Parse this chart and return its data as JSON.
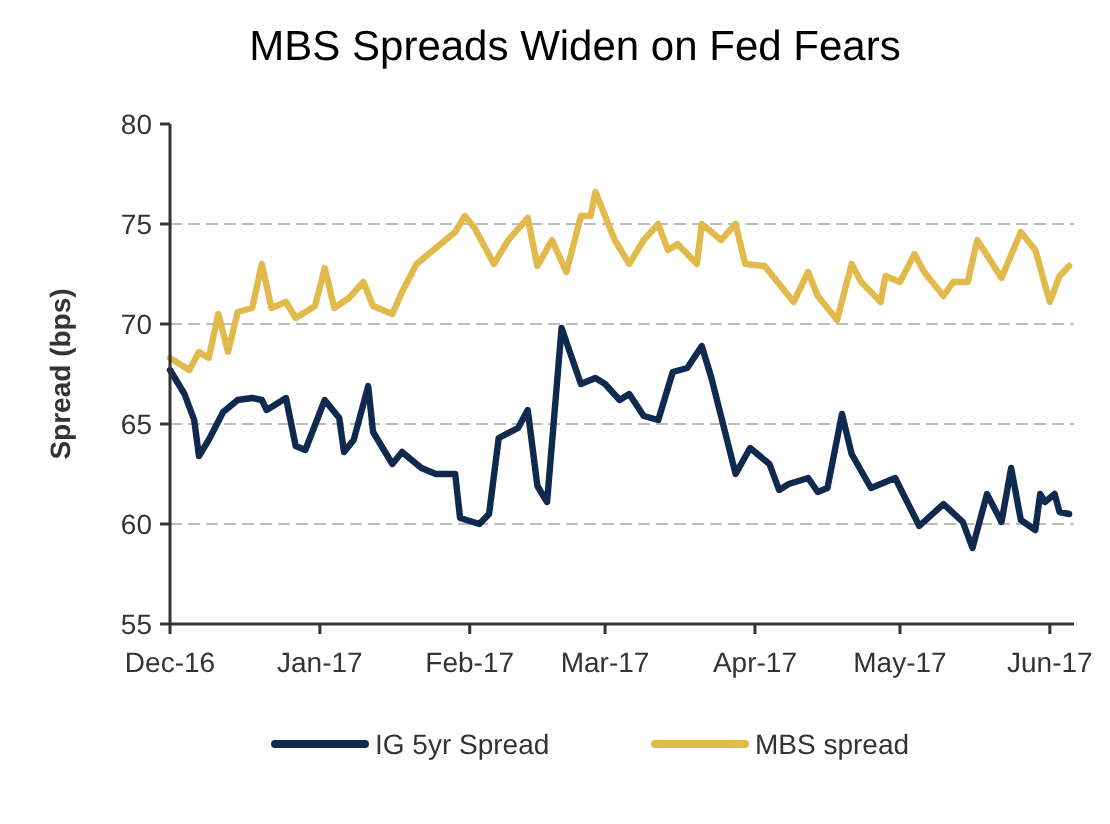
{
  "chart_data": {
    "type": "line",
    "title": "MBS Spreads Widen on Fed Fears",
    "ylabel": "Spread (bps)",
    "xlim": [
      "2016-12-01",
      "2017-06-06"
    ],
    "xticks": [
      {
        "value": "2016-12-01",
        "label": "Dec-16"
      },
      {
        "value": "2017-01-01",
        "label": "Jan-17"
      },
      {
        "value": "2017-02-01",
        "label": "Feb-17"
      },
      {
        "value": "2017-03-01",
        "label": "Mar-17"
      },
      {
        "value": "2017-04-01",
        "label": "Apr-17"
      },
      {
        "value": "2017-05-01",
        "label": "May-17"
      },
      {
        "value": "2017-06-01",
        "label": "Jun-17"
      }
    ],
    "ylim": [
      55,
      80
    ],
    "yticks": [
      55,
      60,
      65,
      70,
      75,
      80
    ],
    "grid": "y",
    "legend": "bottom",
    "line_style": "solid",
    "series": [
      {
        "name": "IG 5yr Spread",
        "color": "#10294f",
        "x": [
          "2016-12-01",
          "2016-12-04",
          "2016-12-06",
          "2016-12-07",
          "2016-12-09",
          "2016-12-12",
          "2016-12-15",
          "2016-12-18",
          "2016-12-20",
          "2016-12-21",
          "2016-12-25",
          "2016-12-27",
          "2016-12-29",
          "2017-01-02",
          "2017-01-05",
          "2017-01-06",
          "2017-01-08",
          "2017-01-11",
          "2017-01-12",
          "2017-01-16",
          "2017-01-18",
          "2017-01-22",
          "2017-01-25",
          "2017-01-29",
          "2017-01-30",
          "2017-02-03",
          "2017-02-05",
          "2017-02-07",
          "2017-02-11",
          "2017-02-13",
          "2017-02-15",
          "2017-02-17",
          "2017-02-20",
          "2017-02-24",
          "2017-02-27",
          "2017-03-01",
          "2017-03-04",
          "2017-03-06",
          "2017-03-09",
          "2017-03-12",
          "2017-03-15",
          "2017-03-18",
          "2017-03-21",
          "2017-03-23",
          "2017-03-28",
          "2017-03-31",
          "2017-04-04",
          "2017-04-06",
          "2017-04-08",
          "2017-04-12",
          "2017-04-14",
          "2017-04-16",
          "2017-04-19",
          "2017-04-21",
          "2017-04-25",
          "2017-04-30",
          "2017-05-05",
          "2017-05-10",
          "2017-05-14",
          "2017-05-16",
          "2017-05-19",
          "2017-05-22",
          "2017-05-24",
          "2017-05-26",
          "2017-05-29",
          "2017-05-30",
          "2017-05-31",
          "2017-06-02",
          "2017-06-03",
          "2017-06-05"
        ],
        "values": [
          67.7,
          66.5,
          65.2,
          63.4,
          64.2,
          65.6,
          66.2,
          66.3,
          66.2,
          65.7,
          66.3,
          63.9,
          63.7,
          66.2,
          65.3,
          63.6,
          64.2,
          66.9,
          64.6,
          63.0,
          63.6,
          62.8,
          62.5,
          62.5,
          60.3,
          60.0,
          60.5,
          64.3,
          64.8,
          65.7,
          61.9,
          61.1,
          69.8,
          67.0,
          67.3,
          67.0,
          66.2,
          66.5,
          65.4,
          65.2,
          67.6,
          67.8,
          68.9,
          67.3,
          62.5,
          63.8,
          63.0,
          61.7,
          62.0,
          62.3,
          61.6,
          61.8,
          65.5,
          63.5,
          61.8,
          62.3,
          59.9,
          61.0,
          60.1,
          58.8,
          61.5,
          60.1,
          62.8,
          60.2,
          59.7,
          61.5,
          61.1,
          61.5,
          60.6,
          60.5
        ]
      },
      {
        "name": "MBS spread",
        "color": "#e2b94b",
        "x": [
          "2016-12-01",
          "2016-12-05",
          "2016-12-07",
          "2016-12-09",
          "2016-12-11",
          "2016-12-13",
          "2016-12-15",
          "2016-12-18",
          "2016-12-20",
          "2016-12-22",
          "2016-12-25",
          "2016-12-27",
          "2016-12-31",
          "2017-01-02",
          "2017-01-04",
          "2017-01-07",
          "2017-01-10",
          "2017-01-12",
          "2017-01-16",
          "2017-01-18",
          "2017-01-21",
          "2017-01-25",
          "2017-01-29",
          "2017-01-31",
          "2017-02-02",
          "2017-02-06",
          "2017-02-09",
          "2017-02-13",
          "2017-02-15",
          "2017-02-18",
          "2017-02-21",
          "2017-02-24",
          "2017-02-26",
          "2017-02-27",
          "2017-03-03",
          "2017-03-04",
          "2017-03-06",
          "2017-03-09",
          "2017-03-12",
          "2017-03-14",
          "2017-03-16",
          "2017-03-20",
          "2017-03-21",
          "2017-03-25",
          "2017-03-28",
          "2017-03-30",
          "2017-04-03",
          "2017-04-06",
          "2017-04-09",
          "2017-04-12",
          "2017-04-14",
          "2017-04-18",
          "2017-04-21",
          "2017-04-23",
          "2017-04-27",
          "2017-04-28",
          "2017-05-01",
          "2017-05-04",
          "2017-05-06",
          "2017-05-10",
          "2017-05-12",
          "2017-05-15",
          "2017-05-17",
          "2017-05-22",
          "2017-05-26",
          "2017-05-29",
          "2017-06-01",
          "2017-06-03",
          "2017-06-05"
        ],
        "values": [
          68.3,
          67.7,
          68.6,
          68.3,
          70.5,
          68.6,
          70.6,
          70.8,
          73.0,
          70.8,
          71.1,
          70.3,
          70.9,
          72.8,
          70.8,
          71.3,
          72.1,
          70.9,
          70.5,
          71.6,
          73.0,
          73.8,
          74.6,
          75.4,
          74.8,
          73.0,
          74.2,
          75.3,
          72.9,
          74.2,
          72.6,
          75.4,
          75.4,
          76.6,
          74.2,
          73.8,
          73.0,
          74.2,
          75.0,
          73.7,
          74.0,
          73.0,
          75.0,
          74.2,
          75.0,
          73.0,
          72.9,
          72.0,
          71.1,
          72.6,
          71.4,
          70.2,
          73.0,
          72.1,
          71.1,
          72.4,
          72.1,
          73.5,
          72.6,
          71.4,
          72.1,
          72.1,
          74.2,
          72.3,
          74.6,
          73.7,
          71.1,
          72.4,
          72.9
        ]
      }
    ]
  }
}
